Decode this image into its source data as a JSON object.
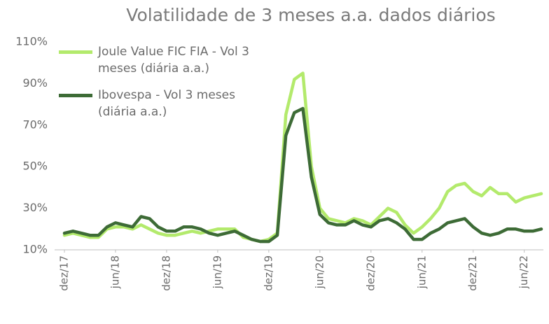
{
  "chart_data": {
    "type": "line",
    "title": "Volatilidade de 3 meses  a.a. dados diários",
    "categories": [
      "dez/17",
      null,
      null,
      null,
      null,
      null,
      "jun/18",
      null,
      null,
      null,
      null,
      null,
      "dez/18",
      null,
      null,
      null,
      null,
      null,
      "jun/19",
      null,
      null,
      null,
      null,
      null,
      "dez/19",
      null,
      null,
      null,
      null,
      null,
      "jun/20",
      null,
      null,
      null,
      null,
      null,
      "dez/20",
      null,
      null,
      null,
      null,
      null,
      "jun/21",
      null,
      null,
      null,
      null,
      null,
      "dez/21",
      null,
      null,
      null,
      null,
      null,
      "jun/22",
      null,
      null
    ],
    "series": [
      {
        "name": "Joule Value FIC FIA - Vol 3 meses (diária a.a.)",
        "color": "#b3ea6c",
        "values": [
          17,
          18,
          17,
          16,
          16,
          20,
          21,
          21,
          20,
          22,
          20,
          18,
          17,
          17,
          18,
          19,
          18,
          19,
          20,
          20,
          20,
          16,
          15,
          14,
          15,
          18,
          75,
          92,
          95,
          50,
          30,
          25,
          24,
          23,
          25,
          24,
          22,
          26,
          30,
          28,
          22,
          18,
          21,
          25,
          30,
          38,
          41,
          42,
          38,
          36,
          40,
          37,
          37,
          33,
          35,
          36,
          37
        ]
      },
      {
        "name": "Ibovespa - Vol 3 meses (diária a.a.)",
        "color": "#3d6b36",
        "values": [
          18,
          19,
          18,
          17,
          17,
          21,
          23,
          22,
          21,
          26,
          25,
          21,
          19,
          19,
          21,
          21,
          20,
          18,
          17,
          18,
          19,
          17,
          15,
          14,
          14,
          17,
          65,
          76,
          78,
          45,
          27,
          23,
          22,
          22,
          24,
          22,
          21,
          24,
          25,
          23,
          20,
          15,
          15,
          18,
          20,
          23,
          24,
          25,
          21,
          18,
          17,
          18,
          20,
          20,
          19,
          19,
          20
        ]
      }
    ],
    "ylim": [
      10,
      110
    ],
    "yticks": [
      {
        "value": 10,
        "label": "10%"
      },
      {
        "value": 30,
        "label": "30%"
      },
      {
        "value": 50,
        "label": "50%"
      },
      {
        "value": 70,
        "label": "70%"
      },
      {
        "value": 90,
        "label": "90%"
      },
      {
        "value": 110,
        "label": "110%"
      }
    ],
    "grid": false,
    "legend": "upper left"
  }
}
